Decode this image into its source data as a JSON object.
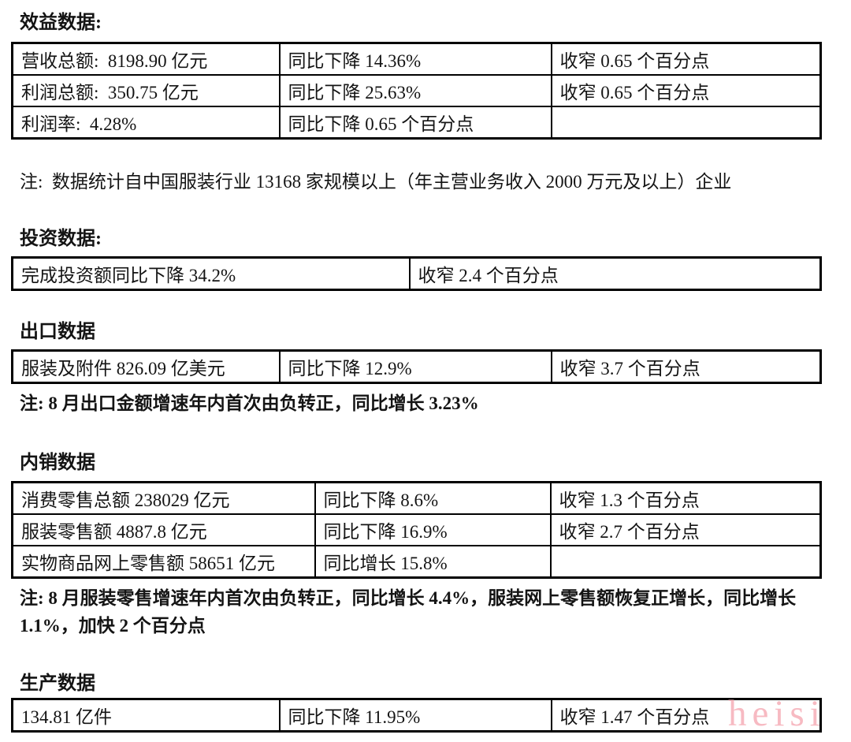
{
  "page": {
    "background": "#ffffff",
    "text_color": "#141414",
    "table_border_color": "#000000"
  },
  "watermark": {
    "text": "heisi",
    "color": "#f7bac2"
  },
  "sections": {
    "benefit": {
      "heading": "效益数据:",
      "rows": [
        {
          "c1": "营收总额:  8198.90 亿元",
          "c2": "同比下降 14.36%",
          "c3": "收窄 0.65 个百分点"
        },
        {
          "c1": "利润总额:  350.75 亿元",
          "c2": "同比下降 25.63%",
          "c3": "收窄 0.65 个百分点"
        },
        {
          "c1": "利润率:  4.28%",
          "c2": "同比下降 0.65 个百分点",
          "c3": ""
        }
      ],
      "note": "注:  数据统计自中国服装行业 13168 家规模以上（年主营业务收入 2000 万元及以上）企业"
    },
    "investment": {
      "heading": "投资数据:",
      "rows": [
        {
          "c1": "完成投资额同比下降 34.2%",
          "c2": "收窄 2.4 个百分点"
        }
      ]
    },
    "export": {
      "heading": "出口数据",
      "rows": [
        {
          "c1": "服装及附件 826.09 亿美元",
          "c2": "同比下降 12.9%",
          "c3": "收窄 3.7 个百分点"
        }
      ],
      "note": "注: 8 月出口金额增速年内首次由负转正，同比增长 3.23%"
    },
    "domestic": {
      "heading": "内销数据",
      "rows": [
        {
          "c1": "消费零售总额 238029 亿元",
          "c2": "同比下降 8.6%",
          "c3": "收窄 1.3 个百分点"
        },
        {
          "c1": "服装零售额 4887.8 亿元",
          "c2": "同比下降 16.9%",
          "c3": "收窄 2.7 个百分点"
        },
        {
          "c1": "实物商品网上零售额 58651 亿元",
          "c2": "同比增长 15.8%",
          "c3": ""
        }
      ],
      "note": "注: 8 月服装零售增速年内首次由负转正，同比增长 4.4%，服装网上零售额恢复正增长，同比增长 1.1%，加快 2 个百分点"
    },
    "production": {
      "heading": "生产数据",
      "rows": [
        {
          "c1": "134.81 亿件",
          "c2": "同比下降 11.95%",
          "c3": "收窄 1.47 个百分点"
        }
      ]
    }
  }
}
